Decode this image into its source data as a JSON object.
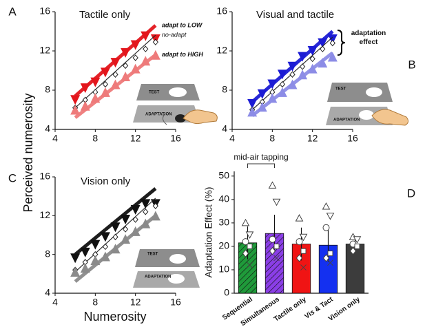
{
  "chart_data": [
    {
      "type": "scatter",
      "panel": "A",
      "title": "Tactile only",
      "xlim": [
        4,
        16
      ],
      "ylim": [
        4,
        16
      ],
      "xticks": [
        4,
        8,
        12,
        16
      ],
      "yticks": [
        4,
        8,
        12,
        16
      ],
      "inset_labels": [
        "TEST",
        "ADAPTATION"
      ],
      "series": [
        {
          "name": "adapt to LOW",
          "color": "#e3161c",
          "marker": "down",
          "x": [
            6,
            7,
            8,
            9,
            10,
            11,
            12,
            13,
            14
          ],
          "values": [
            7.0,
            8.2,
            8.8,
            9.8,
            10.8,
            11.8,
            12.6,
            13.5,
            13.2
          ],
          "fit_x": [
            6,
            14
          ],
          "fit_y": [
            7.4,
            14.6
          ]
        },
        {
          "name": "no-adapt",
          "color": "#222222",
          "marker": "diamond",
          "x": [
            6,
            7,
            8,
            9,
            10,
            11,
            12,
            13,
            14
          ],
          "values": [
            6.2,
            7.0,
            7.8,
            8.6,
            9.6,
            10.5,
            11.3,
            12.2,
            12.9
          ],
          "fit_x": [
            6,
            14
          ],
          "fit_y": [
            6.2,
            13.6
          ]
        },
        {
          "name": "adapt to HIGH",
          "color": "#ee7a7a",
          "marker": "up",
          "x": [
            6,
            7,
            8,
            9,
            10,
            11,
            12,
            13,
            14
          ],
          "values": [
            6.0,
            6.4,
            7.2,
            7.8,
            8.6,
            9.4,
            10.2,
            11.0,
            11.6
          ],
          "fit_x": [
            6,
            14
          ],
          "fit_y": [
            5.2,
            11.6
          ]
        }
      ]
    },
    {
      "type": "scatter",
      "panel": "B",
      "title": "Visual and tactile",
      "annotation": "adaptation effect",
      "xlim": [
        4,
        16
      ],
      "ylim": [
        4,
        16
      ],
      "xticks": [
        4,
        8,
        12,
        16
      ],
      "yticks": [
        4,
        8,
        12,
        16
      ],
      "inset_labels": [
        "TEST",
        "ADAPTATION"
      ],
      "series": [
        {
          "color": "#1c1cd4",
          "marker": "down",
          "x": [
            6,
            7,
            8,
            9,
            10,
            11,
            12,
            13,
            14
          ],
          "values": [
            6.6,
            7.6,
            8.6,
            9.6,
            10.4,
            11.4,
            12.0,
            12.8,
            13.2
          ],
          "fit_x": [
            6,
            14
          ],
          "fit_y": [
            6.8,
            14.0
          ]
        },
        {
          "color": "#222222",
          "marker": "diamond",
          "x": [
            6,
            7,
            8,
            9,
            10,
            11,
            12,
            13,
            14
          ],
          "values": [
            6.0,
            6.8,
            7.8,
            8.6,
            9.6,
            10.4,
            11.2,
            12.2,
            12.8
          ],
          "fit_x": [
            6,
            14
          ],
          "fit_y": [
            6.0,
            13.4
          ]
        },
        {
          "color": "#8c8ce6",
          "marker": "up",
          "x": [
            6,
            7,
            8,
            9,
            10,
            11,
            12,
            13,
            14
          ],
          "values": [
            5.8,
            6.3,
            7.2,
            7.8,
            8.6,
            9.6,
            10.2,
            10.8,
            11.4
          ],
          "fit_x": [
            6,
            14
          ],
          "fit_y": [
            5.4,
            11.8
          ]
        }
      ]
    },
    {
      "type": "scatter",
      "panel": "C",
      "title": "Vision only",
      "xlabel": "Numerosity",
      "ylabel": "Perceived numerosity",
      "xlim": [
        4,
        16
      ],
      "ylim": [
        4,
        16
      ],
      "xticks": [
        4,
        8,
        12,
        16
      ],
      "yticks": [
        4,
        8,
        12,
        16
      ],
      "inset_labels": [
        "TEST",
        "ADAPTATION"
      ],
      "series": [
        {
          "color": "#111111",
          "marker": "down",
          "x": [
            6,
            7,
            8,
            9,
            10,
            11,
            12,
            13,
            14
          ],
          "values": [
            7.6,
            8.2,
            9.0,
            9.8,
            10.8,
            11.6,
            12.6,
            13.2,
            13.2
          ],
          "fit_x": [
            6,
            14
          ],
          "fit_y": [
            8.0,
            14.8
          ]
        },
        {
          "color": "#222222",
          "marker": "diamond",
          "x": [
            6,
            7,
            8,
            9,
            10,
            11,
            12,
            13,
            14
          ],
          "values": [
            6.4,
            7.2,
            8.0,
            8.8,
            9.8,
            10.6,
            11.6,
            12.4,
            13.0
          ],
          "fit_x": [
            6,
            14
          ],
          "fit_y": [
            6.2,
            13.8
          ]
        },
        {
          "color": "#8a8a8a",
          "marker": "up",
          "x": [
            6,
            7,
            8,
            9,
            10,
            11,
            12,
            13,
            14
          ],
          "values": [
            6.2,
            6.6,
            7.4,
            7.8,
            8.6,
            9.6,
            10.4,
            11.2,
            12.0
          ],
          "fit_x": [
            6,
            14
          ],
          "fit_y": [
            5.2,
            12.0
          ]
        }
      ]
    },
    {
      "type": "bar",
      "panel": "D",
      "ylabel": "Adaptation Effect (%)",
      "annotation": "mid-air tapping",
      "categories": [
        "Sequential",
        "Simultaneous",
        "Tactile only",
        "Vis & Tact",
        "Vision only"
      ],
      "values": [
        21.5,
        25.5,
        21,
        20.5,
        21
      ],
      "errors": [
        7,
        8,
        7,
        7,
        2
      ],
      "colors": [
        "#1f9a3a",
        "#8a3ee6",
        "#f01414",
        "#1430f0",
        "#3c3c3c"
      ],
      "hatch": [
        true,
        true,
        false,
        false,
        false
      ],
      "points": [
        [
          30,
          25,
          22,
          20,
          17,
          12
        ],
        [
          46,
          39,
          23,
          20,
          18,
          15
        ],
        [
          32,
          24,
          22,
          18,
          15,
          11
        ],
        [
          37,
          33,
          28,
          17,
          15,
          13
        ],
        [
          24,
          23,
          21,
          20,
          18
        ]
      ],
      "ylim": [
        0,
        52
      ],
      "yticks": [
        0,
        10,
        20,
        30,
        40,
        50
      ]
    }
  ]
}
